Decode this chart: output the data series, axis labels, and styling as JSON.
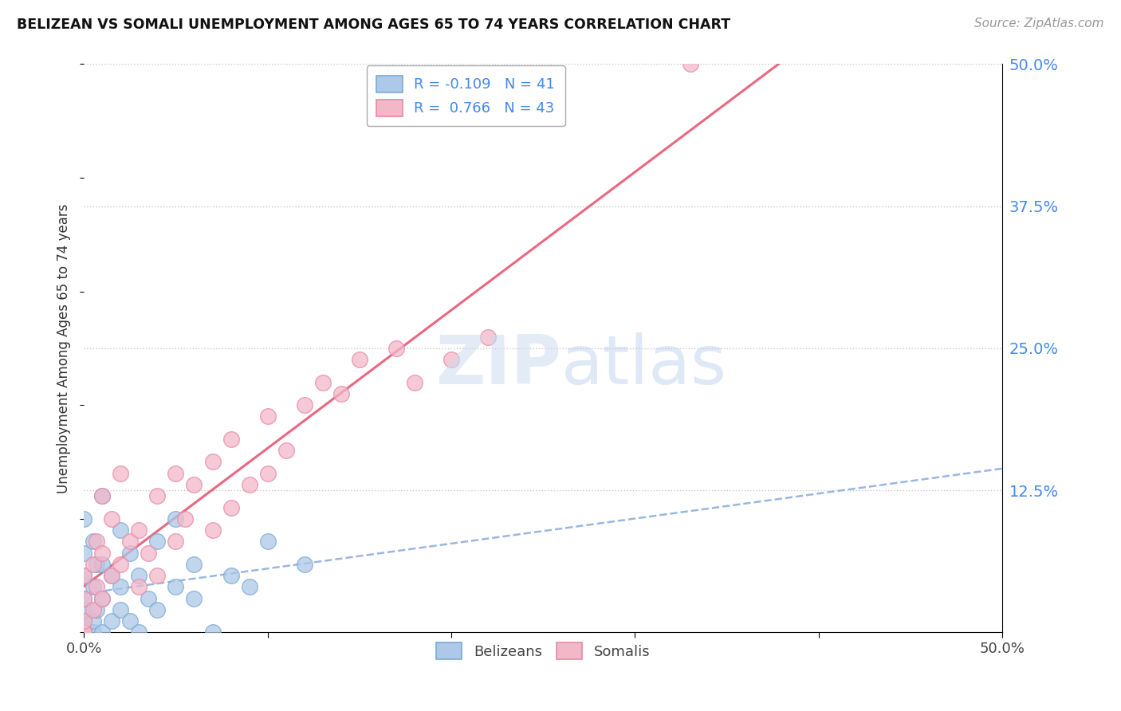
{
  "title": "BELIZEAN VS SOMALI UNEMPLOYMENT AMONG AGES 65 TO 74 YEARS CORRELATION CHART",
  "source": "Source: ZipAtlas.com",
  "ylabel": "Unemployment Among Ages 65 to 74 years",
  "xlim": [
    0,
    0.5
  ],
  "ylim": [
    0,
    0.5
  ],
  "yticks_right": [
    0.0,
    0.125,
    0.25,
    0.375,
    0.5
  ],
  "ytick_labels_right": [
    "",
    "12.5%",
    "25.0%",
    "37.5%",
    "50.0%"
  ],
  "belizean_R": -0.109,
  "belizean_N": 41,
  "somali_R": 0.766,
  "somali_N": 43,
  "belizean_color": "#adc8e8",
  "belizean_edge": "#7aaad4",
  "somali_color": "#f2b8c8",
  "somali_edge": "#e888a8",
  "trend_blue": "#88aadd",
  "trend_pink": "#e8607a",
  "background": "#ffffff",
  "grid_color": "#c8c8c8",
  "title_color": "#111111",
  "axis_label_color": "#333333",
  "right_tick_color": "#4488ee",
  "watermark_color": "#d8e8f4",
  "belizean_x": [
    0.0,
    0.0,
    0.0,
    0.0,
    0.0,
    0.0,
    0.0,
    0.0,
    0.0,
    0.0,
    0.005,
    0.005,
    0.005,
    0.005,
    0.007,
    0.007,
    0.01,
    0.01,
    0.01,
    0.01,
    0.015,
    0.015,
    0.02,
    0.02,
    0.02,
    0.025,
    0.025,
    0.03,
    0.03,
    0.035,
    0.04,
    0.04,
    0.05,
    0.05,
    0.06,
    0.06,
    0.07,
    0.08,
    0.09,
    0.1,
    0.12
  ],
  "belizean_y": [
    0.0,
    0.0,
    0.0,
    0.005,
    0.01,
    0.02,
    0.03,
    0.05,
    0.07,
    0.1,
    0.0,
    0.01,
    0.04,
    0.08,
    0.02,
    0.06,
    0.0,
    0.03,
    0.06,
    0.12,
    0.01,
    0.05,
    0.02,
    0.04,
    0.09,
    0.01,
    0.07,
    0.0,
    0.05,
    0.03,
    0.02,
    0.08,
    0.04,
    0.1,
    0.03,
    0.06,
    0.0,
    0.05,
    0.04,
    0.08,
    0.06
  ],
  "somali_x": [
    0.0,
    0.0,
    0.0,
    0.0,
    0.0,
    0.005,
    0.005,
    0.007,
    0.007,
    0.01,
    0.01,
    0.01,
    0.015,
    0.015,
    0.02,
    0.02,
    0.025,
    0.03,
    0.03,
    0.035,
    0.04,
    0.04,
    0.05,
    0.05,
    0.055,
    0.06,
    0.07,
    0.07,
    0.08,
    0.08,
    0.09,
    0.1,
    0.1,
    0.11,
    0.12,
    0.13,
    0.14,
    0.15,
    0.17,
    0.18,
    0.2,
    0.22,
    0.33
  ],
  "somali_y": [
    0.0,
    0.0,
    0.01,
    0.03,
    0.05,
    0.02,
    0.06,
    0.04,
    0.08,
    0.03,
    0.07,
    0.12,
    0.05,
    0.1,
    0.06,
    0.14,
    0.08,
    0.04,
    0.09,
    0.07,
    0.05,
    0.12,
    0.08,
    0.14,
    0.1,
    0.13,
    0.09,
    0.15,
    0.11,
    0.17,
    0.13,
    0.14,
    0.19,
    0.16,
    0.2,
    0.22,
    0.21,
    0.24,
    0.25,
    0.22,
    0.24,
    0.26,
    0.5
  ]
}
